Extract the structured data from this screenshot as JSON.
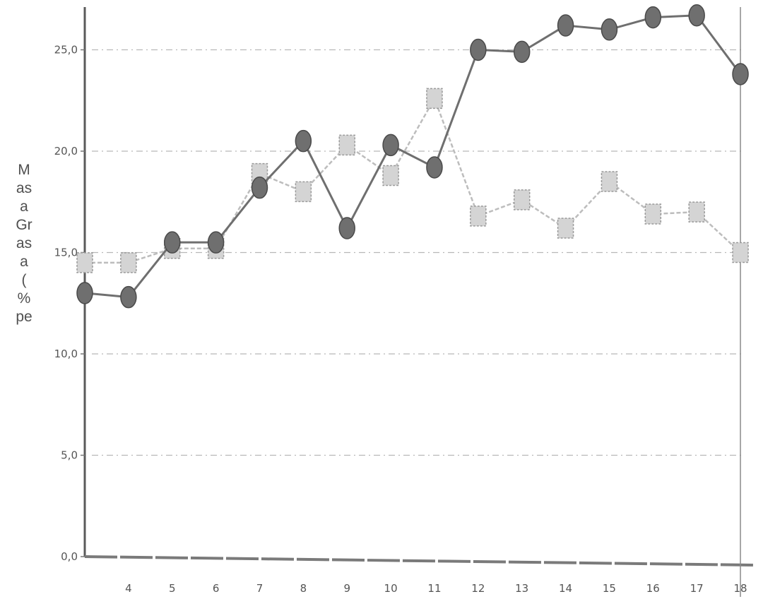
{
  "chart_data": {
    "type": "line",
    "title": "",
    "xlabel": "",
    "ylabel_fragments": [
      "M",
      "as",
      "a",
      "Gr",
      "as",
      "a",
      "(",
      "%",
      "pe"
    ],
    "x": [
      3,
      4,
      5,
      6,
      7,
      8,
      9,
      10,
      11,
      12,
      13,
      14,
      15,
      16,
      17,
      18
    ],
    "x_tick_labels": [
      "4",
      "5",
      "6",
      "7",
      "8",
      "9",
      "10",
      "11",
      "12",
      "13",
      "14",
      "15",
      "16",
      "17",
      "18"
    ],
    "y_tick_labels": [
      "25,0",
      "20,0",
      "15,0",
      "10,0",
      "5,0",
      "0,0"
    ],
    "ylim": [
      0,
      27
    ],
    "grid": "horizontal dashed",
    "legend": "none",
    "series": [
      {
        "marker": "circle",
        "color": "#6f6f6f",
        "values": [
          13.0,
          12.8,
          15.5,
          15.5,
          18.2,
          20.5,
          16.2,
          20.3,
          19.2,
          25.0,
          24.9,
          26.2,
          26.0,
          26.6,
          26.7,
          23.8
        ]
      },
      {
        "marker": "square",
        "color": "#bdbdbd",
        "values": [
          14.5,
          14.5,
          15.2,
          15.2,
          18.9,
          18.0,
          20.3,
          18.8,
          22.6,
          16.8,
          17.6,
          16.2,
          18.5,
          16.9,
          17.0,
          15.0
        ]
      }
    ]
  }
}
